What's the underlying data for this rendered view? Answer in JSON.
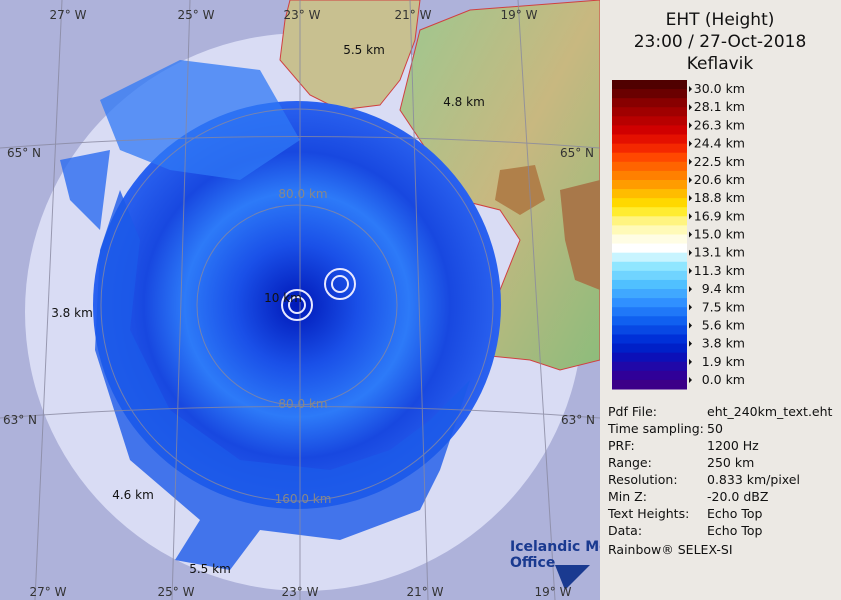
{
  "header": {
    "lines": [
      "EHT (Height)",
      "23:00 / 27-Oct-2018",
      "Keflavik"
    ]
  },
  "legend": {
    "labels": [
      "30.0 km",
      "28.1 km",
      "26.3 km",
      "24.4 km",
      "22.5 km",
      "20.6 km",
      "18.8 km",
      "16.9 km",
      "15.0 km",
      "13.1 km",
      "11.3 km",
      "9.4 km",
      "7.5 km",
      "5.6 km",
      "3.8 km",
      "1.9 km",
      "0.0 km"
    ],
    "colors": [
      "#500000",
      "#6a0000",
      "#880000",
      "#a00000",
      "#b80000",
      "#d00000",
      "#e41000",
      "#f42800",
      "#ff4800",
      "#ff6400",
      "#ff8000",
      "#ff9c00",
      "#ffbc00",
      "#ffd800",
      "#ffec30",
      "#fff480",
      "#fffab8",
      "#fffde4",
      "#ffffff",
      "#c8f4ff",
      "#90e6ff",
      "#70d4ff",
      "#50c0ff",
      "#40a8ff",
      "#3090ff",
      "#2078f8",
      "#1060f0",
      "#0848e4",
      "#0030d8",
      "#0020c8",
      "#0c10b8",
      "#2008a8",
      "#300098",
      "#3c0088"
    ]
  },
  "info": {
    "rows": [
      [
        "Pdf File:",
        "eht_240km_text.eht"
      ],
      [
        "Time sampling:",
        "50"
      ],
      [
        "PRF:",
        "1200 Hz"
      ],
      [
        "Range:",
        "250 km"
      ],
      [
        "Resolution:",
        "0.833 km/pixel"
      ],
      [
        "Min Z:",
        "-20.0 dBZ"
      ],
      [
        "Text Heights:",
        "Echo Top"
      ],
      [
        "Data:",
        "Echo Top"
      ]
    ],
    "footer": "Rainbow® SELEX-SI"
  },
  "map": {
    "lon_top": [
      "27° W",
      "25° W",
      "23° W",
      "21° W",
      "19° W"
    ],
    "lon_bottom": [
      "27° W",
      "25° W",
      "23° W",
      "21° W",
      "19° W"
    ],
    "lat": [
      "65° N",
      "65° N",
      "63° N",
      "63° N"
    ],
    "rings": [
      "80.0 km",
      "80.0 km",
      "160.0 km"
    ],
    "heights": [
      "5.5 km",
      "4.8 km",
      "3.8 km",
      "4.6 km",
      "5.5 km",
      "10 km"
    ],
    "logo": [
      "Icelandic Met",
      "Office"
    ]
  }
}
